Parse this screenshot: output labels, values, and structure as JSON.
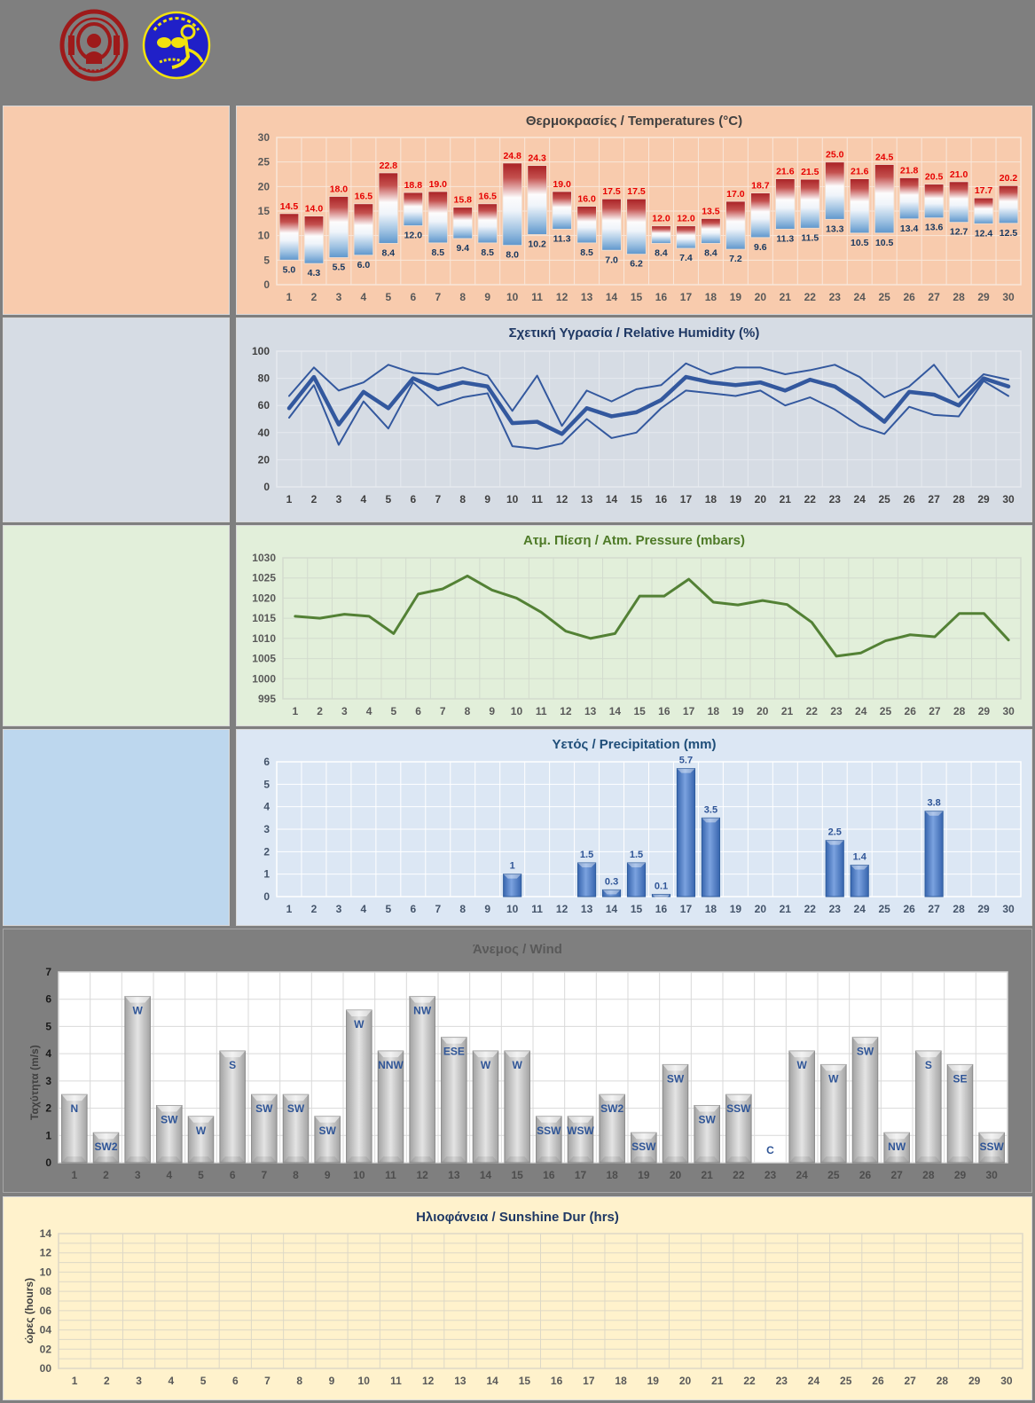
{
  "header": {
    "logos": [
      "university-seal-logo",
      "swimming-club-emblem-logo"
    ]
  },
  "days": [
    1,
    2,
    3,
    4,
    5,
    6,
    7,
    8,
    9,
    10,
    11,
    12,
    13,
    14,
    15,
    16,
    17,
    18,
    19,
    20,
    21,
    22,
    23,
    24,
    25,
    26,
    27,
    28,
    29,
    30
  ],
  "chart_data": [
    {
      "id": "temperature",
      "type": "floating-bar",
      "title": "Θερμοκρασίες / Temperatures (°C)",
      "ylim": [
        0,
        30
      ],
      "ytick": 5,
      "series": [
        {
          "name": "Tmax",
          "values": [
            14.5,
            14.0,
            18.0,
            16.5,
            22.8,
            18.8,
            19.0,
            15.8,
            16.5,
            24.8,
            24.3,
            19.0,
            16.0,
            17.5,
            17.5,
            12.0,
            12.0,
            13.5,
            17.0,
            18.7,
            21.6,
            21.5,
            25.0,
            21.6,
            24.5,
            21.8,
            20.5,
            21.0,
            17.7,
            20.2
          ]
        },
        {
          "name": "Tmin",
          "values": [
            5.0,
            4.3,
            5.5,
            6.0,
            8.4,
            12.0,
            8.5,
            9.4,
            8.5,
            8.0,
            10.2,
            11.3,
            8.5,
            7.0,
            6.2,
            8.4,
            7.4,
            8.4,
            7.2,
            9.6,
            11.3,
            11.5,
            13.3,
            10.5,
            10.5,
            13.4,
            13.6,
            12.7,
            12.4,
            12.5
          ]
        }
      ],
      "layout": {
        "l": 45,
        "t": 35,
        "r": 14,
        "b": 35
      },
      "colors": {
        "panel": "#F8CBAD",
        "left_block": "#F8CBAD",
        "grid": "#F9E7DA",
        "title": "#404040",
        "tick": "#595959",
        "max_label": "#E60000",
        "min_label": "#17375E",
        "bar_edge": "#F2DCCB"
      }
    },
    {
      "id": "humidity",
      "type": "line",
      "title": "Σχετική Υγρασία / Relative Humidity (%)",
      "ylim": [
        0,
        100
      ],
      "ytick": 20,
      "series": [
        {
          "name": "Max",
          "width": 2,
          "values": [
            67,
            88,
            71,
            77,
            90,
            84,
            83,
            88,
            82,
            56,
            82,
            45,
            71,
            63,
            72,
            75,
            91,
            83,
            88,
            88,
            83,
            86,
            90,
            81,
            66,
            74,
            90,
            66,
            83,
            79
          ]
        },
        {
          "name": "Mean",
          "width": 4.5,
          "values": [
            58,
            81,
            46,
            70,
            58,
            80,
            72,
            77,
            74,
            47,
            48,
            39,
            58,
            52,
            55,
            64,
            81,
            77,
            75,
            77,
            71,
            79,
            74,
            62,
            48,
            70,
            68,
            60,
            80,
            74
          ]
        },
        {
          "name": "Min",
          "width": 2,
          "values": [
            51,
            75,
            31,
            63,
            43,
            77,
            60,
            66,
            69,
            30,
            28,
            32,
            50,
            36,
            40,
            58,
            71,
            69,
            67,
            71,
            60,
            66,
            57,
            45,
            39,
            59,
            53,
            52,
            78,
            67
          ]
        }
      ],
      "layout": {
        "l": 45,
        "t": 37,
        "r": 14,
        "b": 41
      },
      "colors": {
        "panel": "#D6DCE4",
        "left_block": "#D6DCE4",
        "grid": "#E6EAEF",
        "title": "#1F3864",
        "tick": "#404040",
        "line": "#33589E"
      }
    },
    {
      "id": "pressure",
      "type": "line",
      "title": "Ατμ. Πίεση / Atm. Pressure (mbars)",
      "ylim": [
        995,
        1030
      ],
      "ytick": 5,
      "series": [
        {
          "name": "Pressure",
          "width": 3,
          "values": [
            1015.5,
            1015.0,
            1016.0,
            1015.5,
            1011.2,
            1021.0,
            1022.3,
            1025.5,
            1022.0,
            1020.0,
            1016.5,
            1011.8,
            1010.0,
            1011.2,
            1020.5,
            1020.5,
            1024.7,
            1019.0,
            1018.3,
            1019.4,
            1018.4,
            1014.0,
            1005.6,
            1006.4,
            1009.4,
            1010.9,
            1010.4,
            1016.2,
            1016.2,
            1009.6
          ]
        }
      ],
      "layout": {
        "l": 52,
        "t": 36,
        "r": 14,
        "b": 32
      },
      "colors": {
        "panel": "#E2EFDA",
        "left_block": "#E2EFDA",
        "grid": "#D3DBCE",
        "title": "#4E7A27",
        "tick": "#595959",
        "line": "#538135"
      }
    },
    {
      "id": "precipitation",
      "type": "bar",
      "title": "Υετός / Precipitation (mm)",
      "ylim": [
        0,
        6
      ],
      "ytick": 1,
      "values": [
        0,
        0,
        0,
        0,
        0,
        0,
        0,
        0,
        0,
        1,
        0,
        0,
        1.5,
        0.3,
        1.5,
        0.1,
        5.7,
        3.5,
        0,
        0,
        0,
        0,
        2.5,
        1.4,
        0,
        0,
        3.8,
        0,
        0,
        0
      ],
      "labels": [
        "",
        "",
        "",
        "",
        "",
        "",
        "",
        "",
        "",
        "1",
        "",
        "",
        "1.5",
        "0.3",
        "1.5",
        "0.1",
        "5.7",
        "3.5",
        "",
        "",
        "",
        "",
        "2.5",
        "1.4",
        "",
        "",
        "3.8",
        "",
        "",
        ""
      ],
      "layout": {
        "l": 45,
        "t": 36,
        "r": 14,
        "b": 34
      },
      "colors": {
        "panel": "#DCE7F4",
        "left_block": "#BDD7EE",
        "grid": "#FFFFFF",
        "title": "#1F4E79",
        "tick": "#44546A",
        "bar_edge": "#2E5C9E",
        "label": "#2F5597"
      }
    },
    {
      "id": "wind",
      "type": "bar-labeled",
      "title": "Άνεμος / Wind",
      "ylabel": "Ταχύτητα (m/s)",
      "ylim": [
        0,
        7
      ],
      "ytick": 1,
      "values": [
        2.5,
        1.1,
        6.1,
        2.1,
        1.7,
        4.1,
        2.5,
        2.5,
        1.7,
        5.6,
        4.1,
        6.1,
        4.6,
        4.1,
        4.1,
        1.7,
        1.7,
        2.5,
        1.1,
        3.6,
        2.1,
        2.5,
        0,
        4.1,
        3.6,
        4.6,
        1.1,
        4.1,
        3.6,
        1.1
      ],
      "labels": [
        "N",
        "SW2",
        "W",
        "SW",
        "W",
        "S",
        "SW",
        "SW",
        "SW",
        "W",
        "NNW",
        "NW",
        "ESE",
        "W",
        "W",
        "SSW",
        "WSW",
        "SW2",
        "SSW",
        "SW",
        "SW",
        "SSW",
        "C",
        "W",
        "W",
        "SW",
        "NW",
        "S",
        "SE",
        "SSW"
      ],
      "layout": {
        "l": 62,
        "t": 48,
        "r": 29,
        "b": 35
      },
      "colors": {
        "panel": "#7F7F7F",
        "plot": "#FFFFFF",
        "grid": "#D9D9D9",
        "title": "#595959",
        "tick": "#1A1A1A",
        "xtick": "#4D4D4D",
        "bar_edge": "#898989",
        "label": "#2F5597"
      }
    },
    {
      "id": "sunshine",
      "type": "empty-grid",
      "title": "Ηλιοφάνεια / Sunshine Dur (hrs)",
      "ylabel": "ώρες (hours)",
      "ylim": [
        0,
        14
      ],
      "ytick": 2,
      "yminor": 1,
      "ytick_labels": [
        "00",
        "02",
        "04",
        "06",
        "08",
        "10",
        "12",
        "14"
      ],
      "layout": {
        "l": 62,
        "t": 41,
        "r": 12,
        "b": 37
      },
      "colors": {
        "panel": "#FFF2CC",
        "grid": "#DDD8C6",
        "title": "#1F3864",
        "tick": "#595959"
      }
    }
  ]
}
